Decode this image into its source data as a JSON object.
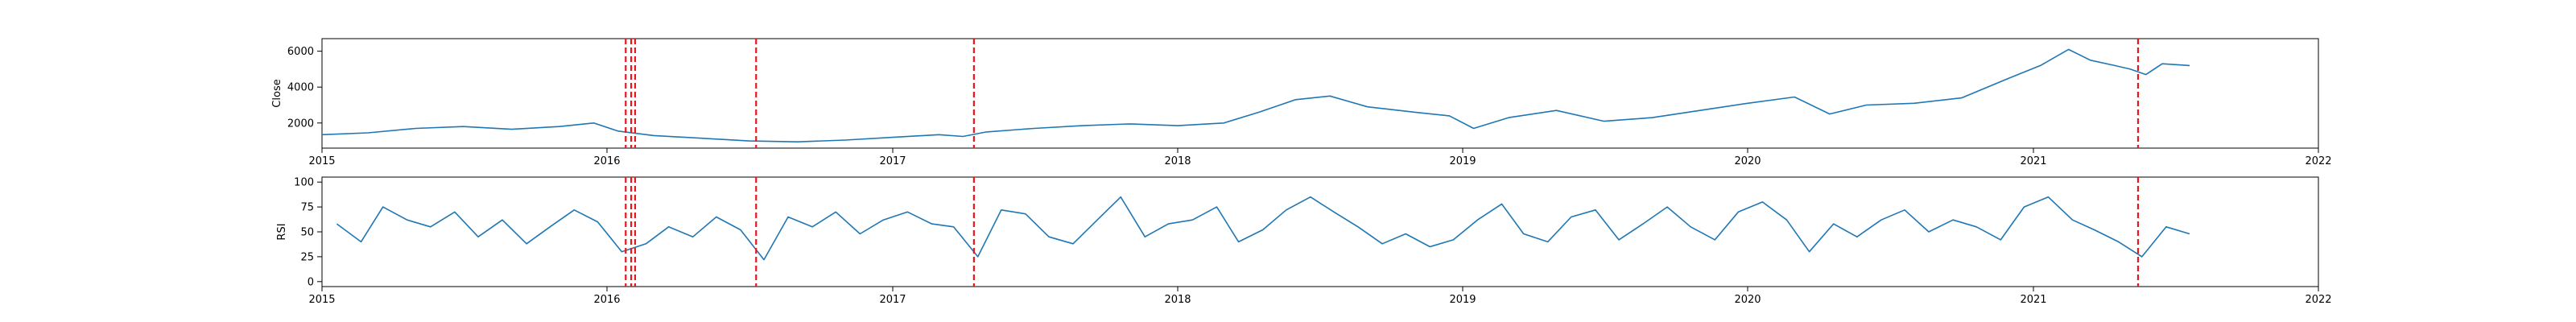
{
  "chart_data": [
    {
      "type": "line",
      "ylabel": "Close",
      "xlim": [
        "2015-01-01",
        "2022-01-01"
      ],
      "ylim": [
        600,
        6700
      ],
      "xticks": [
        "2015",
        "2016",
        "2017",
        "2018",
        "2019",
        "2020",
        "2021",
        "2022"
      ],
      "yticks": [
        2000,
        4000,
        6000
      ],
      "grid": false,
      "series": [
        {
          "color": "#1f77b4",
          "x": [
            "2015-01-01",
            "2015-03-01",
            "2015-05-01",
            "2015-07-01",
            "2015-09-01",
            "2015-11-01",
            "2015-12-15",
            "2016-01-15",
            "2016-03-01",
            "2016-05-01",
            "2016-07-01",
            "2016-09-01",
            "2016-11-01",
            "2017-01-01",
            "2017-03-01",
            "2017-04-01",
            "2017-05-01",
            "2017-07-01",
            "2017-09-01",
            "2017-11-01",
            "2018-01-01",
            "2018-03-01",
            "2018-04-15",
            "2018-06-01",
            "2018-07-15",
            "2018-09-01",
            "2018-11-01",
            "2018-12-15",
            "2019-01-15",
            "2019-03-01",
            "2019-05-01",
            "2019-07-01",
            "2019-09-01",
            "2019-11-01",
            "2020-01-01",
            "2020-03-01",
            "2020-04-15",
            "2020-06-01",
            "2020-08-01",
            "2020-10-01",
            "2020-12-01",
            "2021-01-10",
            "2021-02-15",
            "2021-03-15",
            "2021-04-15",
            "2021-05-05",
            "2021-05-25",
            "2021-06-15",
            "2021-07-20"
          ],
          "values": [
            1350,
            1450,
            1700,
            1800,
            1650,
            1800,
            2000,
            1550,
            1300,
            1150,
            1000,
            950,
            1050,
            1200,
            1350,
            1250,
            1500,
            1700,
            1850,
            1950,
            1850,
            2000,
            2600,
            3300,
            3500,
            2900,
            2600,
            2400,
            1700,
            2300,
            2700,
            2100,
            2300,
            2700,
            3100,
            3450,
            2500,
            3000,
            3100,
            3400,
            4500,
            5200,
            6100,
            5500,
            5200,
            5000,
            4700,
            5300,
            5200
          ]
        }
      ],
      "vlines": [
        "2016-01-25",
        "2016-02-01",
        "2016-02-06",
        "2016-07-10",
        "2017-04-15",
        "2021-05-15"
      ]
    },
    {
      "type": "line",
      "ylabel": "RSI",
      "xlim": [
        "2015-01-01",
        "2022-01-01"
      ],
      "ylim": [
        -5,
        105
      ],
      "xticks": [
        "2015",
        "2016",
        "2017",
        "2018",
        "2019",
        "2020",
        "2021",
        "2022"
      ],
      "yticks": [
        0,
        25,
        50,
        75,
        100
      ],
      "grid": false,
      "series": [
        {
          "color": "#1f77b4",
          "x": [
            "2015-01-20",
            "2015-02-20",
            "2015-03-20",
            "2015-04-20",
            "2015-05-20",
            "2015-06-20",
            "2015-07-20",
            "2015-08-20",
            "2015-09-20",
            "2015-10-20",
            "2015-11-20",
            "2015-12-20",
            "2016-01-20",
            "2016-02-20",
            "2016-03-20",
            "2016-04-20",
            "2016-05-20",
            "2016-06-20",
            "2016-07-20",
            "2016-08-20",
            "2016-09-20",
            "2016-10-20",
            "2016-11-20",
            "2016-12-20",
            "2017-01-20",
            "2017-02-20",
            "2017-03-20",
            "2017-04-20",
            "2017-05-20",
            "2017-06-20",
            "2017-07-20",
            "2017-08-20",
            "2017-09-20",
            "2017-10-20",
            "2017-11-20",
            "2017-12-20",
            "2018-01-20",
            "2018-02-20",
            "2018-03-20",
            "2018-04-20",
            "2018-05-20",
            "2018-06-20",
            "2018-07-20",
            "2018-08-20",
            "2018-09-20",
            "2018-10-20",
            "2018-11-20",
            "2018-12-20",
            "2019-01-20",
            "2019-02-20",
            "2019-03-20",
            "2019-04-20",
            "2019-05-20",
            "2019-06-20",
            "2019-07-20",
            "2019-08-20",
            "2019-09-20",
            "2019-10-20",
            "2019-11-20",
            "2019-12-20",
            "2020-01-20",
            "2020-02-20",
            "2020-03-20",
            "2020-04-20",
            "2020-05-20",
            "2020-06-20",
            "2020-07-20",
            "2020-08-20",
            "2020-09-20",
            "2020-10-20",
            "2020-11-20",
            "2020-12-20",
            "2021-01-20",
            "2021-02-20",
            "2021-03-20",
            "2021-04-20",
            "2021-05-20",
            "2021-06-20",
            "2021-07-20"
          ],
          "values": [
            58,
            40,
            75,
            62,
            55,
            70,
            45,
            62,
            38,
            55,
            72,
            60,
            30,
            38,
            55,
            45,
            65,
            52,
            22,
            65,
            55,
            70,
            48,
            62,
            70,
            58,
            55,
            25,
            72,
            68,
            45,
            38,
            62,
            85,
            45,
            58,
            62,
            75,
            40,
            52,
            72,
            85,
            70,
            55,
            38,
            48,
            35,
            42,
            62,
            78,
            48,
            40,
            65,
            72,
            42,
            58,
            75,
            55,
            42,
            70,
            80,
            62,
            30,
            58,
            45,
            62,
            72,
            50,
            62,
            55,
            42,
            75,
            85,
            62,
            52,
            40,
            25,
            55,
            48
          ]
        }
      ],
      "vlines": [
        "2016-01-25",
        "2016-02-01",
        "2016-02-06",
        "2016-07-10",
        "2017-04-15",
        "2021-05-15"
      ]
    }
  ]
}
